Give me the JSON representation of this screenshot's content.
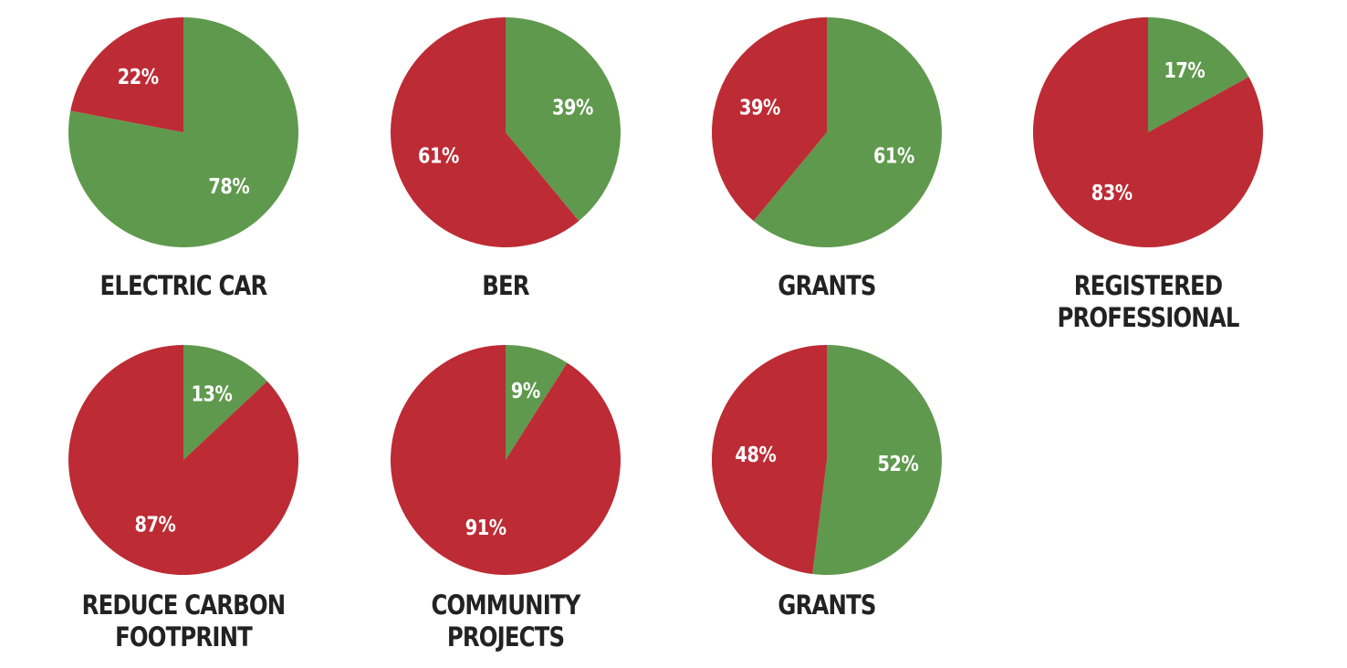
{
  "colors": {
    "positive": "#5f994d",
    "negative": "#bd2b35",
    "slice_text": "#ffffff",
    "label_text": "#222222"
  },
  "chart_data": [
    {
      "type": "pie",
      "title_lines": [
        "ELECTRIC CAR"
      ],
      "slices": [
        {
          "label": "78%",
          "value": 78,
          "color": "positive"
        },
        {
          "label": "22%",
          "value": 22,
          "color": "negative"
        }
      ]
    },
    {
      "type": "pie",
      "title_lines": [
        "BER"
      ],
      "slices": [
        {
          "label": "39%",
          "value": 39,
          "color": "positive"
        },
        {
          "label": "61%",
          "value": 61,
          "color": "negative"
        }
      ]
    },
    {
      "type": "pie",
      "title_lines": [
        "GRANTS"
      ],
      "slices": [
        {
          "label": "61%",
          "value": 61,
          "color": "positive"
        },
        {
          "label": "39%",
          "value": 39,
          "color": "negative"
        }
      ]
    },
    {
      "type": "pie",
      "title_lines": [
        "REGISTERED",
        "PROFESSIONAL"
      ],
      "slices": [
        {
          "label": "17%",
          "value": 17,
          "color": "positive"
        },
        {
          "label": "83%",
          "value": 83,
          "color": "negative"
        }
      ]
    },
    {
      "type": "pie",
      "title_lines": [
        "REDUCE CARBON",
        "FOOTPRINT"
      ],
      "slices": [
        {
          "label": "13%",
          "value": 13,
          "color": "positive"
        },
        {
          "label": "87%",
          "value": 87,
          "color": "negative"
        }
      ]
    },
    {
      "type": "pie",
      "title_lines": [
        "COMMUNITY",
        "PROJECTS"
      ],
      "slices": [
        {
          "label": "9%",
          "value": 9,
          "color": "positive"
        },
        {
          "label": "91%",
          "value": 91,
          "color": "negative"
        }
      ]
    },
    {
      "type": "pie",
      "title_lines": [
        "GRANTS"
      ],
      "slices": [
        {
          "label": "52%",
          "value": 52,
          "color": "positive"
        },
        {
          "label": "48%",
          "value": 48,
          "color": "negative"
        }
      ]
    }
  ]
}
